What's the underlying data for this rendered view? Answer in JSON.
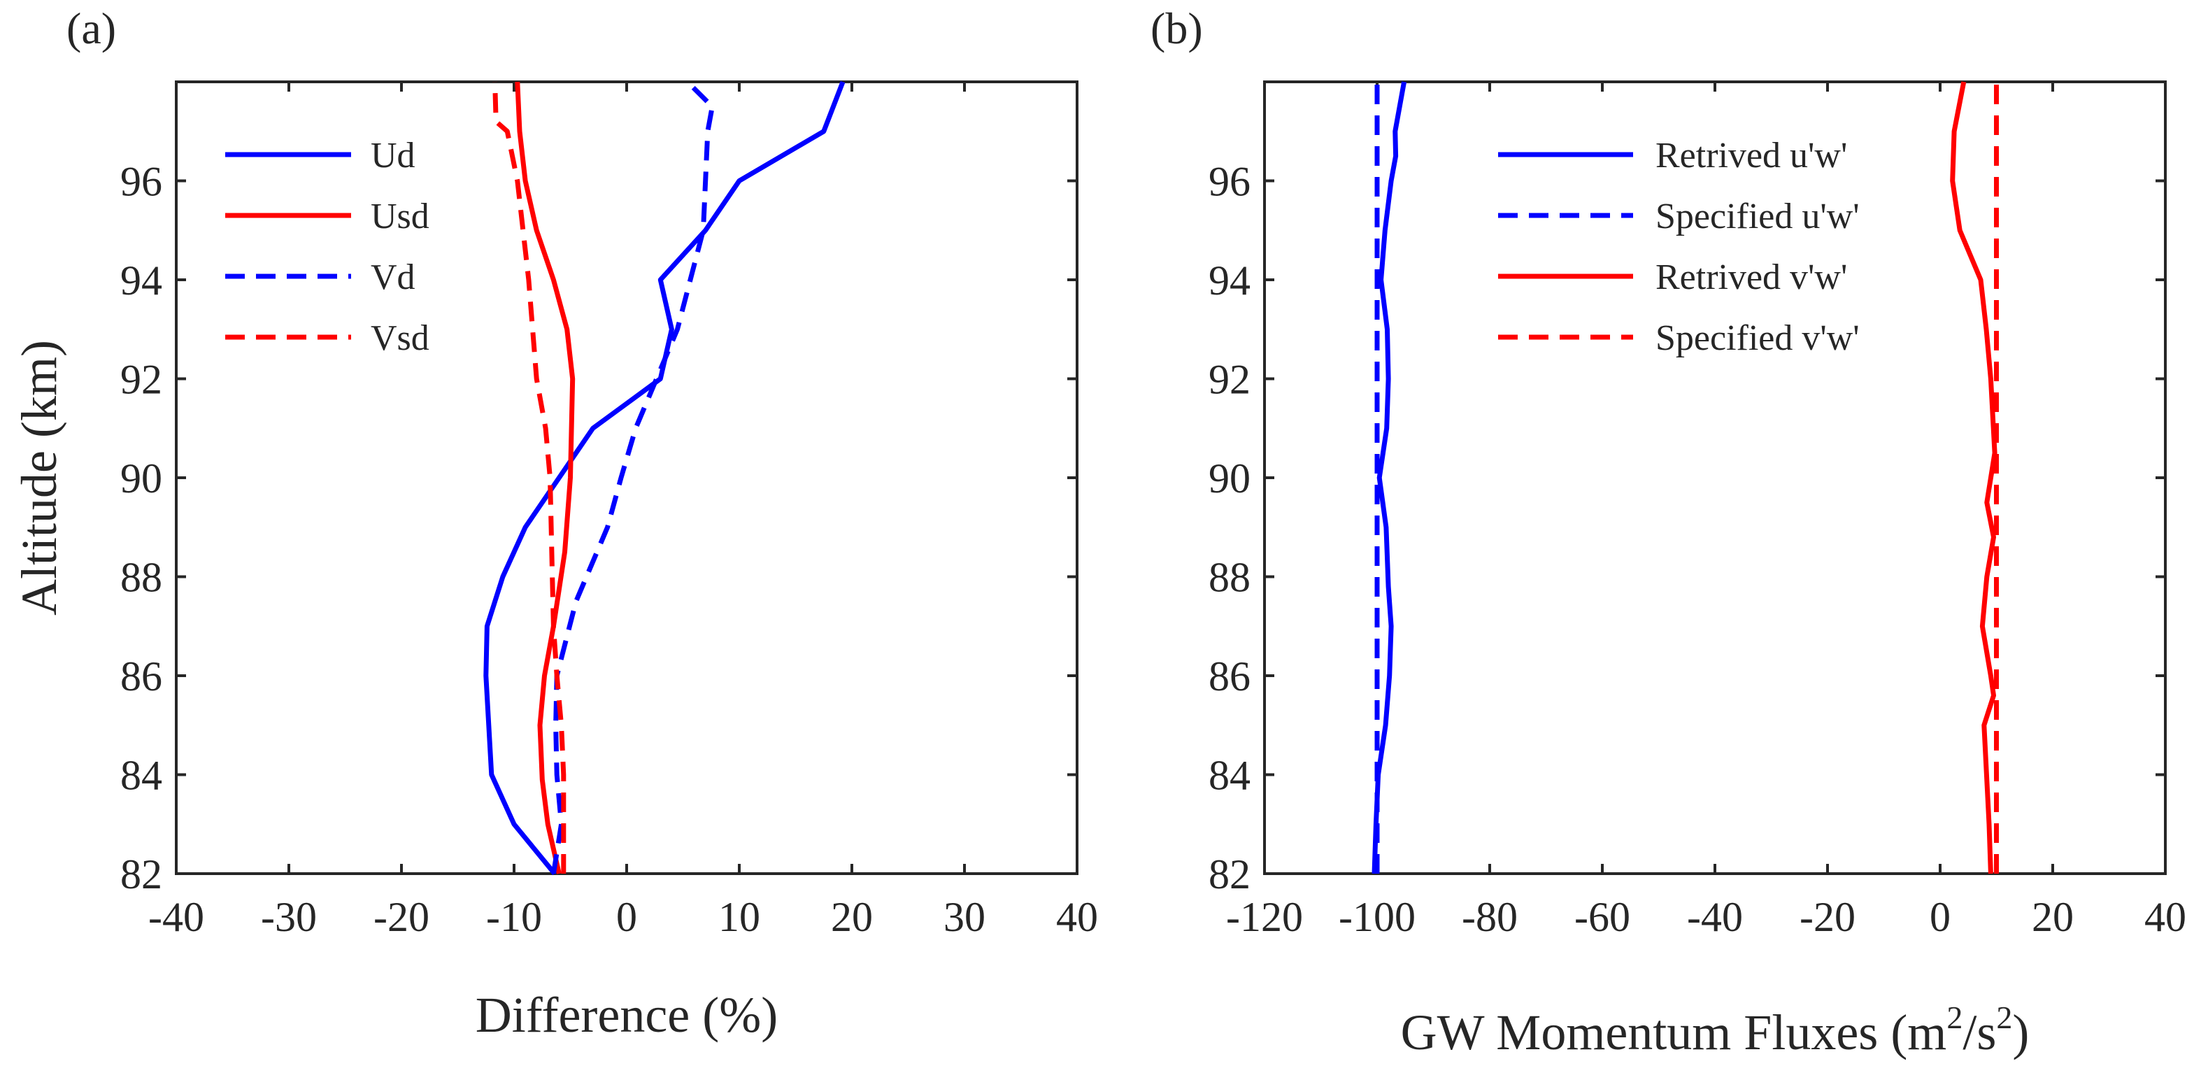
{
  "chart_data": [
    {
      "type": "line",
      "panel_label": "(a)",
      "xlabel": "Difference (%)",
      "ylabel": "Altitude (km)",
      "xlim": [
        -40,
        40
      ],
      "ylim": [
        82,
        98
      ],
      "xticks": [
        "-40",
        "-30",
        "-20",
        "-10",
        "0",
        "10",
        "20",
        "30",
        "40"
      ],
      "yticks": [
        "82",
        "84",
        "86",
        "88",
        "90",
        "92",
        "94",
        "96"
      ],
      "legend_position": "top-left",
      "series": [
        {
          "name": "Ud",
          "color": "#0000ff",
          "dash": "solid",
          "x": [
            -6.4,
            -10,
            -12,
            -12.5,
            -12.4,
            -11,
            -9,
            -3,
            3,
            4,
            3,
            7,
            10,
            17.5,
            19.2
          ],
          "y": [
            82,
            83,
            84,
            86,
            87,
            88,
            89,
            91,
            92,
            93,
            94,
            95,
            96,
            97,
            98
          ]
        },
        {
          "name": "Usd",
          "color": "#ff0000",
          "dash": "solid",
          "x": [
            -6,
            -7,
            -7.5,
            -7.7,
            -7.3,
            -6.5,
            -5.5,
            -5,
            -4.8,
            -5.3,
            -6.5,
            -8,
            -9,
            -9.5,
            -9.7
          ],
          "y": [
            82,
            83,
            83.9,
            85,
            86,
            87,
            88.5,
            90,
            92,
            93,
            94,
            95,
            96,
            97,
            98
          ]
        },
        {
          "name": "Vd",
          "color": "#0000ff",
          "dash": "dashed",
          "x": [
            -6.5,
            -5.8,
            -6.2,
            -6.3,
            -6.2,
            -4.5,
            -1.7,
            -0.5,
            0.8,
            4.5,
            6.8,
            7,
            7.2,
            7.6,
            5.4
          ],
          "y": [
            82,
            83,
            84,
            85,
            86,
            87.5,
            89,
            90,
            91,
            93,
            95,
            96,
            97,
            97.5,
            98
          ]
        },
        {
          "name": "Vsd",
          "color": "#ff0000",
          "dash": "dashed",
          "x": [
            -5.6,
            -5.6,
            -5.6,
            -5.8,
            -6.2,
            -6.5,
            -6.6,
            -6.7,
            -6.8,
            -7.2,
            -8,
            -8.7,
            -9.7,
            -10.6,
            -11.6,
            -11.7
          ],
          "y": [
            82,
            83,
            84,
            85,
            86,
            87,
            88,
            89,
            90,
            91,
            92,
            94,
            96,
            97,
            97.2,
            98
          ]
        }
      ]
    },
    {
      "type": "line",
      "panel_label": "(b)",
      "xlabel_main": "GW Momentum Fluxes (m",
      "xlabel_sup1": "2",
      "xlabel_mid": "/s",
      "xlabel_sup2": "2",
      "xlabel_end": ")",
      "ylabel": "",
      "xlim": [
        -120,
        40
      ],
      "ylim": [
        82,
        98
      ],
      "xticks": [
        "-120",
        "-100",
        "-80",
        "-60",
        "-40",
        "-20",
        "0",
        "20",
        "40"
      ],
      "yticks": [
        "82",
        "84",
        "86",
        "88",
        "90",
        "92",
        "94",
        "96"
      ],
      "legend_position": "top",
      "series": [
        {
          "name": "Retrived u'w'",
          "color": "#0000ff",
          "dash": "solid",
          "x": [
            -100.5,
            -100.2,
            -99.8,
            -98.5,
            -97.8,
            -97.5,
            -98,
            -98.4,
            -99.6,
            -98.3,
            -98,
            -98.2,
            -99.3,
            -98.6,
            -97.5,
            -96.7,
            -96.8,
            -95.2
          ],
          "y": [
            82,
            83,
            84,
            85,
            86,
            87,
            87.8,
            89,
            90,
            91,
            92,
            93,
            94,
            95,
            96,
            96.5,
            97,
            98
          ]
        },
        {
          "name": "Specified u'w'",
          "color": "#0000ff",
          "dash": "dashed",
          "x": [
            -100,
            -100,
            -100,
            -100,
            -100,
            -100,
            -100,
            -100,
            -100
          ],
          "y": [
            82,
            84,
            86,
            88,
            90,
            92,
            94,
            96,
            98
          ]
        },
        {
          "name": "Retrived v'w'",
          "color": "#ff0000",
          "dash": "solid",
          "x": [
            9,
            8.7,
            7.8,
            9.5,
            9,
            7.5,
            8.3,
            9.5,
            8.3,
            9.7,
            9,
            8.2,
            7.2,
            3.5,
            2.2,
            2.5,
            4.2
          ],
          "y": [
            82,
            83,
            85,
            85.6,
            86,
            87,
            88,
            88.8,
            89.5,
            90.5,
            92,
            93,
            94,
            95,
            96,
            97,
            98
          ]
        },
        {
          "name": "Specified v'w'",
          "color": "#ff0000",
          "dash": "dashed",
          "x": [
            10,
            10,
            10,
            10,
            10,
            10,
            10,
            10,
            10
          ],
          "y": [
            82,
            84,
            86,
            88,
            90,
            92,
            94,
            96,
            98
          ]
        }
      ]
    }
  ]
}
